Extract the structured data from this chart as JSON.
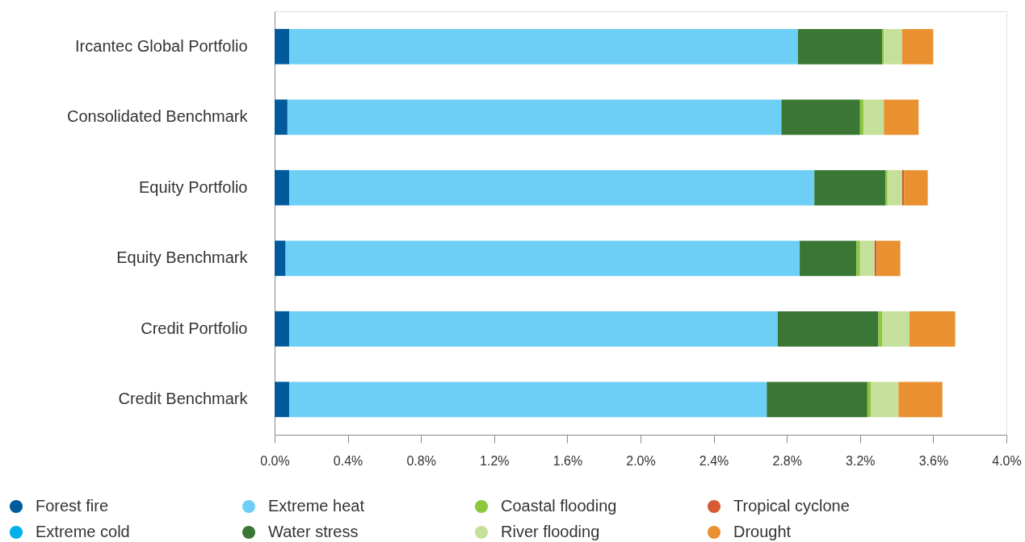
{
  "chart_data": {
    "type": "bar",
    "orientation": "horizontal",
    "stacked": true,
    "categories": [
      "Ircantec Global Portfolio",
      "Consolidated Benchmark",
      "Equity Portfolio",
      "Equity Benchmark",
      "Credit Portfolio",
      "Credit Benchmark"
    ],
    "series": [
      {
        "name": "Forest fire",
        "color": "#005a9c",
        "values": [
          0.08,
          0.07,
          0.08,
          0.06,
          0.08,
          0.08
        ]
      },
      {
        "name": "Extreme cold",
        "color": "#00b0ea",
        "values": [
          0,
          0,
          0,
          0,
          0,
          0
        ]
      },
      {
        "name": "Extreme heat",
        "color": "#6dcff6",
        "values": [
          2.78,
          2.7,
          2.87,
          2.81,
          2.67,
          2.61
        ]
      },
      {
        "name": "Water stress",
        "color": "#3b7734",
        "values": [
          0.46,
          0.43,
          0.39,
          0.31,
          0.55,
          0.55
        ]
      },
      {
        "name": "Coastal flooding",
        "color": "#8dc63f",
        "values": [
          0.01,
          0.02,
          0.01,
          0.02,
          0.02,
          0.02
        ]
      },
      {
        "name": "River flooding",
        "color": "#c5e09b",
        "values": [
          0.1,
          0.11,
          0.08,
          0.08,
          0.15,
          0.15
        ]
      },
      {
        "name": "Tropical cyclone",
        "color": "#d75a35",
        "values": [
          0,
          0,
          0.01,
          0.01,
          0,
          0
        ]
      },
      {
        "name": "Drought",
        "color": "#e99131",
        "values": [
          0.17,
          0.19,
          0.13,
          0.13,
          0.25,
          0.24
        ]
      }
    ],
    "xlim": [
      0,
      4.0
    ],
    "xticks": [
      {
        "value": 0,
        "label": "0.0%"
      },
      {
        "value": 0.4,
        "label": "0.4%"
      },
      {
        "value": 0.8,
        "label": "0.8%"
      },
      {
        "value": 1.2,
        "label": "1.2%"
      },
      {
        "value": 1.6,
        "label": "1.6%"
      },
      {
        "value": 2.0,
        "label": "2.0%"
      },
      {
        "value": 2.4,
        "label": "2.4%"
      },
      {
        "value": 2.8,
        "label": "2.8%"
      },
      {
        "value": 3.2,
        "label": "3.2%"
      },
      {
        "value": 3.6,
        "label": "3.6%"
      },
      {
        "value": 4.0,
        "label": "4.0%"
      }
    ],
    "grid": false,
    "legend": "bottom"
  }
}
